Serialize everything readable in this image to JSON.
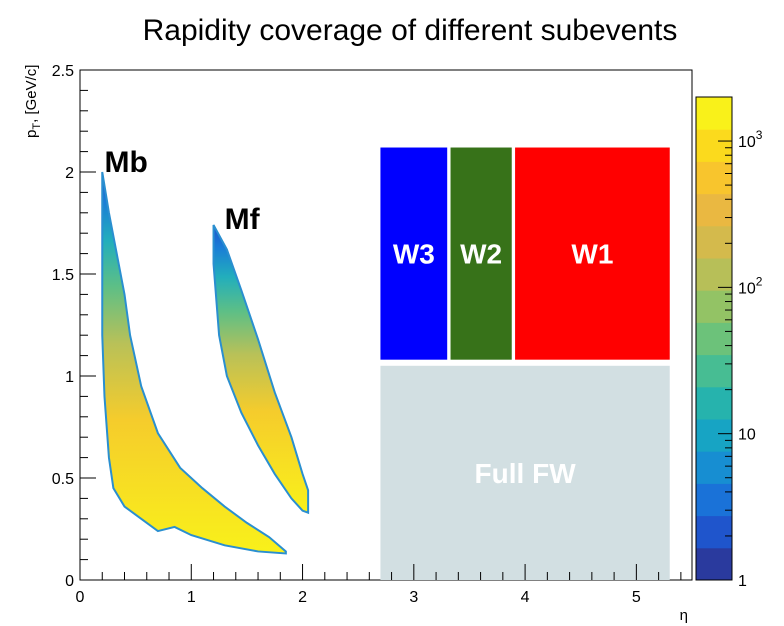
{
  "chart_data": {
    "type": "heatmap",
    "title": "Rapidity coverage of different subevents",
    "xlabel": "η",
    "ylabel": "p_T, [GeV/c]",
    "ylabel_main": "p",
    "ylabel_sub": "T",
    "ylabel_rest": ", [GeV/c]",
    "xlim": [
      0,
      5.5
    ],
    "ylim": [
      0,
      2.5
    ],
    "x_ticks": [
      0,
      1,
      2,
      3,
      4,
      5
    ],
    "x_tick_labels": [
      "0",
      "1",
      "2",
      "3",
      "4",
      "5"
    ],
    "y_ticks": [
      0,
      0.5,
      1,
      1.5,
      2,
      2.5
    ],
    "y_tick_labels": [
      "0",
      "0.5",
      "1",
      "1.5",
      "2",
      "2.5"
    ],
    "colorbar": {
      "scale": "log",
      "range": [
        1,
        2000
      ],
      "ticks": [
        1,
        10,
        100,
        1000
      ],
      "tick_labels": [
        {
          "base": "1",
          "exp": ""
        },
        {
          "base": "10",
          "exp": ""
        },
        {
          "base": "10",
          "exp": "2"
        },
        {
          "base": "10",
          "exp": "3"
        }
      ],
      "palette": [
        "#2a3a9e",
        "#1f55cc",
        "#1a72d8",
        "#178ed2",
        "#17a4c4",
        "#26b3ad",
        "#47bd93",
        "#6cc27a",
        "#93c365",
        "#b7bf58",
        "#d4ba4c",
        "#eab841",
        "#f8c52d",
        "#fbda1d",
        "#f9f11a"
      ]
    },
    "bands": [
      {
        "name": "Mb",
        "upper_edge": [
          [
            0.2,
            2.0
          ],
          [
            0.26,
            1.8
          ],
          [
            0.33,
            1.6
          ],
          [
            0.4,
            1.4
          ],
          [
            0.45,
            1.2
          ],
          [
            0.55,
            0.95
          ],
          [
            0.7,
            0.72
          ],
          [
            0.9,
            0.55
          ],
          [
            1.1,
            0.45
          ],
          [
            1.3,
            0.36
          ],
          [
            1.5,
            0.28
          ],
          [
            1.7,
            0.21
          ],
          [
            1.85,
            0.14
          ]
        ],
        "lower_edge": [
          [
            0.2,
            1.2
          ],
          [
            0.22,
            0.9
          ],
          [
            0.26,
            0.6
          ],
          [
            0.3,
            0.45
          ],
          [
            0.4,
            0.36
          ],
          [
            0.55,
            0.3
          ],
          [
            0.7,
            0.24
          ],
          [
            0.85,
            0.26
          ],
          [
            1.0,
            0.22
          ],
          [
            1.3,
            0.17
          ],
          [
            1.6,
            0.14
          ],
          [
            1.85,
            0.13
          ]
        ]
      },
      {
        "name": "Mf",
        "upper_edge": [
          [
            1.2,
            1.74
          ],
          [
            1.32,
            1.62
          ],
          [
            1.45,
            1.42
          ],
          [
            1.6,
            1.18
          ],
          [
            1.75,
            0.92
          ],
          [
            1.9,
            0.7
          ],
          [
            2.0,
            0.52
          ],
          [
            2.05,
            0.44
          ]
        ],
        "lower_edge": [
          [
            1.2,
            1.55
          ],
          [
            1.25,
            1.2
          ],
          [
            1.32,
            1.0
          ],
          [
            1.45,
            0.82
          ],
          [
            1.6,
            0.66
          ],
          [
            1.75,
            0.52
          ],
          [
            1.9,
            0.4
          ],
          [
            2.0,
            0.34
          ],
          [
            2.05,
            0.33
          ]
        ]
      }
    ],
    "regions": [
      {
        "name": "W3",
        "label": "W3",
        "color": "#0000ff",
        "x": [
          2.7,
          3.3
        ],
        "y": [
          1.08,
          2.12
        ]
      },
      {
        "name": "W2",
        "label": "W2",
        "color": "#377219",
        "x": [
          3.33,
          3.88
        ],
        "y": [
          1.08,
          2.12
        ]
      },
      {
        "name": "W1",
        "label": "W1",
        "color": "#ff0000",
        "x": [
          3.91,
          5.3
        ],
        "y": [
          1.08,
          2.12
        ]
      },
      {
        "name": "Full FW",
        "label": "Full FW",
        "color": "#d2dfe2",
        "x": [
          2.7,
          5.3
        ],
        "y": [
          0.0,
          1.05
        ]
      }
    ],
    "annotations": [
      {
        "name": "Mb",
        "text": "Mb",
        "x": 0.22,
        "y": 2.0
      },
      {
        "name": "Mf",
        "text": "Mf",
        "x": 1.3,
        "y": 1.72
      }
    ]
  }
}
